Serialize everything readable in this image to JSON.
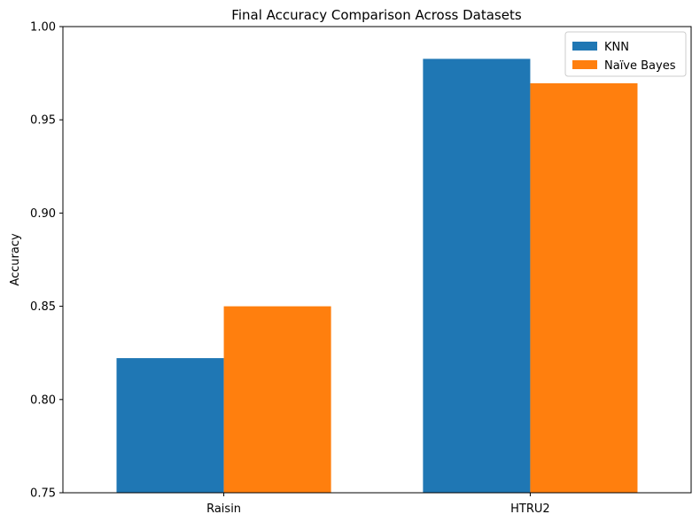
{
  "chart_data": {
    "type": "bar",
    "title": "Final Accuracy Comparison Across Datasets",
    "xlabel": "",
    "ylabel": "Accuracy",
    "categories": [
      "Raisin",
      "HTRU2"
    ],
    "series": [
      {
        "name": "KNN",
        "values": [
          0.8222,
          0.9827
        ],
        "color": "#1f77b4"
      },
      {
        "name": "Naïve Bayes",
        "values": [
          0.85,
          0.9696
        ],
        "color": "#ff7f0e"
      }
    ],
    "ylim": [
      0.75,
      1.0
    ],
    "yticks": [
      "0.75",
      "0.80",
      "0.85",
      "0.90",
      "0.95",
      "1.00"
    ],
    "grid": false,
    "legend_position": "top-right"
  }
}
